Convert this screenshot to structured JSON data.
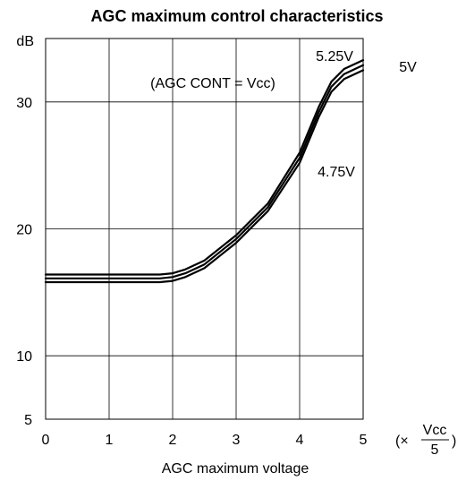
{
  "chart_data": {
    "type": "line",
    "title": "AGC maximum control characteristics",
    "xlabel": "AGC maximum voltage",
    "x_unit": {
      "prefix": "(×",
      "numerator": "Vcc",
      "denominator": "5",
      "suffix": ")"
    },
    "ylabel": "dB",
    "xlim": [
      0,
      5
    ],
    "ylim": [
      5,
      35
    ],
    "x_ticks": [
      "0",
      "1",
      "2",
      "3",
      "4",
      "5"
    ],
    "y_ticks": [
      {
        "value": 5,
        "label": "5"
      },
      {
        "value": 10,
        "label": "10"
      },
      {
        "value": 20,
        "label": "20"
      },
      {
        "value": 30,
        "label": "30"
      }
    ],
    "x_gridlines": [
      1,
      2,
      3,
      4
    ],
    "y_gridlines": [
      10,
      20,
      30
    ],
    "annotation": "(AGC CONT = Vcc)",
    "series": [
      {
        "name": "5.25V",
        "x": [
          0,
          1,
          1.8,
          2.0,
          2.2,
          2.5,
          3.0,
          3.5,
          4.0,
          4.3,
          4.5,
          4.7,
          5.0
        ],
        "y": [
          16.4,
          16.4,
          16.4,
          16.5,
          16.8,
          17.5,
          19.5,
          22.0,
          26.0,
          29.6,
          31.6,
          32.6,
          33.3
        ]
      },
      {
        "name": "5V",
        "x": [
          0,
          1,
          1.8,
          2.0,
          2.2,
          2.5,
          3.0,
          3.5,
          4.0,
          4.3,
          4.5,
          4.7,
          5.0
        ],
        "y": [
          16.1,
          16.1,
          16.1,
          16.2,
          16.5,
          17.2,
          19.2,
          21.7,
          25.6,
          29.2,
          31.2,
          32.2,
          32.9
        ]
      },
      {
        "name": "4.75V",
        "x": [
          0,
          1,
          1.8,
          2.0,
          2.2,
          2.5,
          3.0,
          3.5,
          4.0,
          4.3,
          4.5,
          4.7,
          5.0
        ],
        "y": [
          15.8,
          15.8,
          15.8,
          15.9,
          16.2,
          16.9,
          18.9,
          21.4,
          25.2,
          28.8,
          30.8,
          31.8,
          32.5
        ]
      }
    ]
  }
}
